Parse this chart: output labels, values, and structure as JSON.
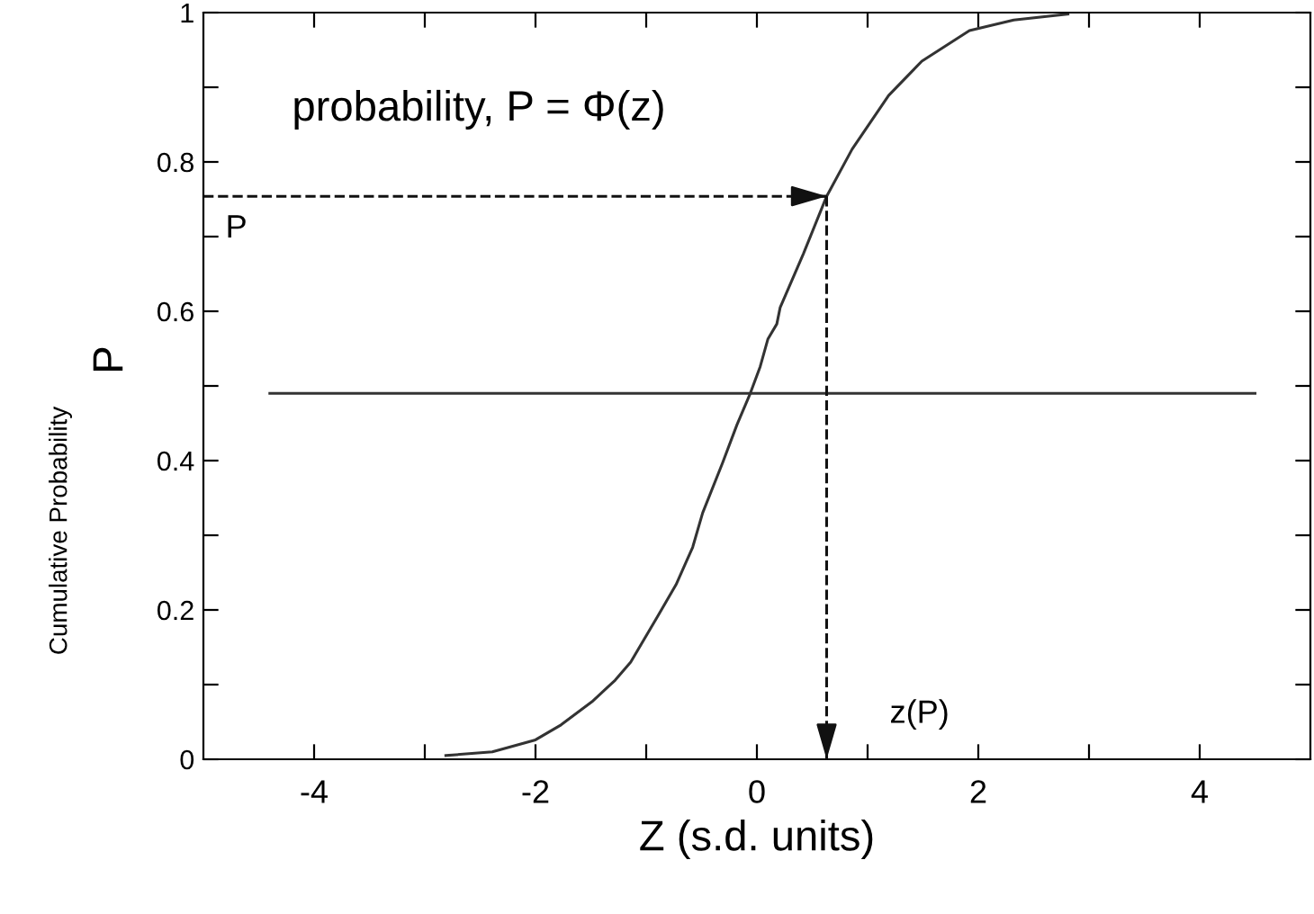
{
  "chart_data": {
    "type": "line",
    "xlabel": "Z (s.d. units)",
    "ylabel": "Cumulative Probability",
    "xlim": [
      -5,
      5
    ],
    "ylim": [
      0,
      1
    ],
    "xticks": [
      -4,
      {
        "value": -3,
        "label": null
      },
      -2,
      {
        "value": -1,
        "label": null
      },
      0,
      {
        "value": 1,
        "label": null
      },
      2,
      {
        "value": 3,
        "label": null
      },
      4
    ],
    "yticks": [
      0,
      {
        "value": 0.1,
        "label": null
      },
      0.2,
      {
        "value": 0.3,
        "label": null
      },
      0.4,
      {
        "value": 0.5,
        "label": null
      },
      0.6,
      {
        "value": 0.7,
        "label": null
      },
      0.8,
      {
        "value": 0.9,
        "label": null
      },
      1
    ],
    "grid": false,
    "legend": false,
    "marker": "none",
    "series": [
      {
        "color": "#333333",
        "line_style": "solid",
        "x": [
          -2.81,
          -2.39,
          -2.0,
          -1.77,
          -1.49,
          -1.28,
          -1.14,
          -0.89,
          -0.73,
          -0.58,
          -0.49,
          -0.31,
          -0.18,
          -0.06,
          0.03,
          0.1,
          0.18,
          0.21,
          0.42,
          0.63,
          0.86,
          1.19,
          1.49,
          1.92,
          2.32,
          2.81
        ],
        "values": [
          0.005,
          0.01,
          0.026,
          0.046,
          0.077,
          0.106,
          0.13,
          0.193,
          0.234,
          0.284,
          0.33,
          0.397,
          0.448,
          0.49,
          0.526,
          0.563,
          0.583,
          0.605,
          0.677,
          0.754,
          0.817,
          0.889,
          0.935,
          0.976,
          0.99,
          0.998
        ]
      },
      {
        "color": "#333333",
        "line_style": "solid",
        "x": [
          -4.4,
          4.5
        ],
        "values": [
          0.49,
          0.49
        ]
      },
      {
        "color": "#111111",
        "line_style": "dashed",
        "x": [
          -5,
          0.63
        ],
        "values": [
          0.754,
          0.754
        ]
      },
      {
        "color": "#111111",
        "line_style": "dashed",
        "x": [
          0.63,
          0.63
        ],
        "values": [
          0.754,
          0
        ]
      }
    ],
    "annotations": [
      {
        "text": "probability, P = Φ(z)"
      },
      "P",
      "z(P)",
      {
        "text": "P"
      }
    ]
  }
}
